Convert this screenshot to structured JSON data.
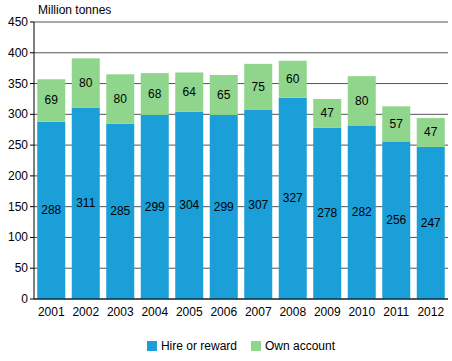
{
  "chart_data": {
    "type": "bar",
    "stacked": true,
    "data_labels": true,
    "grid": true,
    "legend": "bottom",
    "y_label": "Million tonnes",
    "categories": [
      "2001",
      "2002",
      "2003",
      "2004",
      "2005",
      "2006",
      "2007",
      "2008",
      "2009",
      "2010",
      "2011",
      "2012"
    ],
    "series": [
      {
        "name": "Hire or reward",
        "color": "#1b9fd9",
        "values": [
          288,
          311,
          285,
          299,
          304,
          299,
          307,
          327,
          278,
          282,
          256,
          247
        ]
      },
      {
        "name": "Own account",
        "color": "#8fd68c",
        "values": [
          69,
          80,
          80,
          68,
          64,
          65,
          75,
          60,
          47,
          80,
          57,
          47
        ]
      }
    ],
    "ylim": [
      0,
      450
    ],
    "yticks": [
      0,
      50,
      100,
      150,
      200,
      250,
      300,
      350,
      400,
      450
    ]
  }
}
